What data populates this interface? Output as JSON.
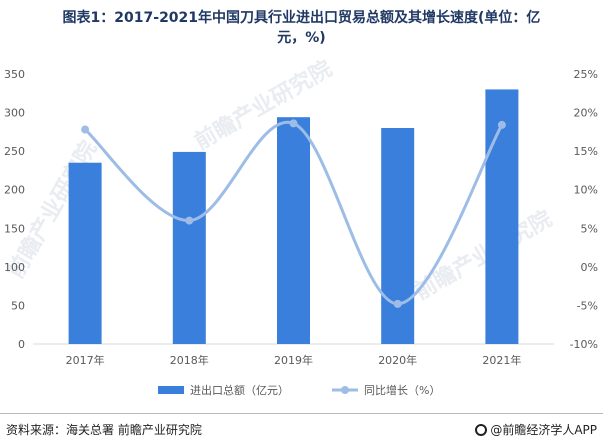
{
  "page": {
    "title_line1": "图表1：2017-2021年中国刀具行业进出口贸易总额及其增长速度(单位：亿",
    "title_line2": "元，%)",
    "source": "资料来源：海关总署 前瞻产业研究院",
    "credit": "@前瞻经济学人APP",
    "watermark": "前瞻产业研究院"
  },
  "chart_data": {
    "type": "bar",
    "categories": [
      "2017年",
      "2018年",
      "2019年",
      "2020年",
      "2021年"
    ],
    "series": [
      {
        "name": "进出口总额（亿元）",
        "kind": "bar",
        "axis": "left",
        "color": "#3b7fdc",
        "values": [
          235,
          249,
          294,
          280,
          330
        ]
      },
      {
        "name": "同比增长（%）",
        "kind": "line",
        "axis": "right",
        "color": "#9dbde6",
        "values": [
          17.8,
          6.0,
          18.6,
          -4.8,
          18.4
        ]
      }
    ],
    "y_left": {
      "min": 0,
      "max": 350,
      "ticks": [
        "0",
        "50",
        "100",
        "150",
        "200",
        "250",
        "300",
        "350"
      ]
    },
    "y_right": {
      "min": -10,
      "max": 25,
      "ticks": [
        "-10%",
        "-5%",
        "0%",
        "5%",
        "10%",
        "15%",
        "20%",
        "25%"
      ]
    },
    "grid": false,
    "legend_position": "bottom"
  }
}
